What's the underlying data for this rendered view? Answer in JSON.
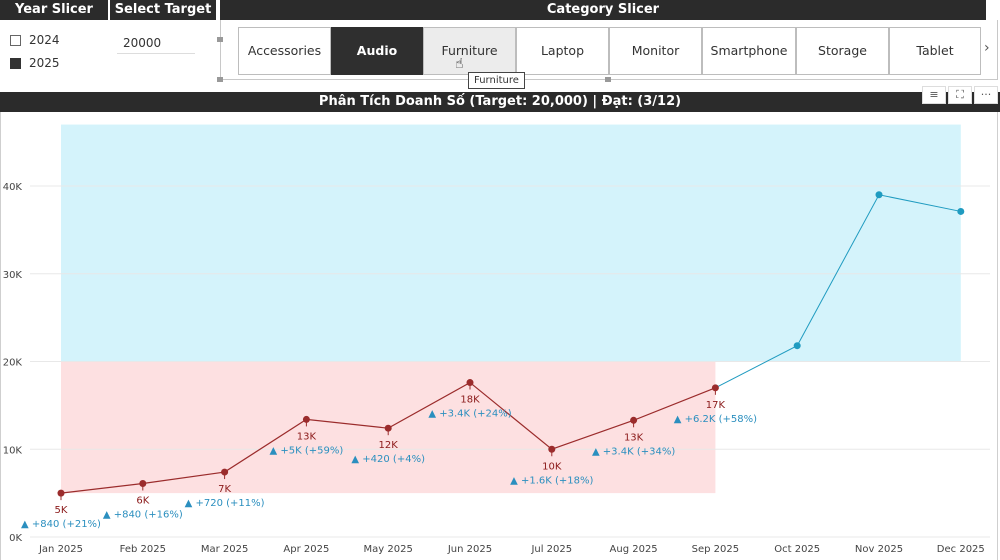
{
  "year_slicer": {
    "title": "Year Slicer",
    "items": [
      {
        "label": "2024",
        "checked": false
      },
      {
        "label": "2025",
        "checked": true
      }
    ]
  },
  "target_slicer": {
    "title": "Select Target",
    "value": "20000"
  },
  "category_slicer": {
    "title": "Category Slicer",
    "items": [
      "Accessories",
      "Audio",
      "Furniture",
      "Laptop",
      "Monitor",
      "Smartphone",
      "Storage",
      "Tablet"
    ],
    "selected": "Audio",
    "hovered": "Furniture",
    "tooltip": "Furniture",
    "next_icon": "chevron-right-icon"
  },
  "visual_header_icons": [
    "filter-icon",
    "focus-mode-icon",
    "more-options-icon"
  ],
  "chart_data": {
    "type": "line",
    "title": "Phân Tích Doanh Số (Target: 20,000) | Đạt: (3/12)",
    "target": 20000,
    "ylim": [
      0,
      47000
    ],
    "yticks": [
      {
        "value": 0,
        "label": "0K"
      },
      {
        "value": 10000,
        "label": "10K"
      },
      {
        "value": 20000,
        "label": "20K"
      },
      {
        "value": 30000,
        "label": "30K"
      },
      {
        "value": 40000,
        "label": "40K"
      }
    ],
    "categories": [
      "Jan 2025",
      "Feb 2025",
      "Mar 2025",
      "Apr 2025",
      "May 2025",
      "Jun 2025",
      "Jul 2025",
      "Aug 2025",
      "Sep 2025",
      "Oct 2025",
      "Nov 2025",
      "Dec 2025"
    ],
    "actual": [
      {
        "value": 5000,
        "label": "5K",
        "delta": "▲ +840 (+21%)"
      },
      {
        "value": 6100,
        "label": "6K",
        "delta": "▲ +840 (+16%)"
      },
      {
        "value": 7400,
        "label": "7K",
        "delta": "▲ +720 (+11%)"
      },
      {
        "value": 13400,
        "label": "13K",
        "delta": "▲ +5K (+59%)"
      },
      {
        "value": 12400,
        "label": "12K",
        "delta": "▲ +420 (+4%)"
      },
      {
        "value": 17600,
        "label": "18K",
        "delta": "▲ +3.4K (+24%)"
      },
      {
        "value": 10000,
        "label": "10K",
        "delta": "▲ +1.6K (+18%)"
      },
      {
        "value": 13300,
        "label": "13K",
        "delta": "▲ +3.4K (+34%)"
      },
      {
        "value": 17000,
        "label": "17K",
        "delta": "▲ +6.2K (+58%)"
      }
    ],
    "forecast": [
      {
        "month": "Sep 2025",
        "value": 17000
      },
      {
        "month": "Oct 2025",
        "value": 21800
      },
      {
        "month": "Nov 2025",
        "value": 39000
      },
      {
        "month": "Dec 2025",
        "value": 37100
      }
    ],
    "bands": {
      "above_target": {
        "color": "#d4f3fb",
        "from_month": "Jan 2025",
        "to_month": "Dec 2025",
        "y_from": 20000,
        "y_to": 47000
      },
      "below_target": {
        "color": "#fde0e1",
        "from_month": "Jan 2025",
        "to_month": "Sep 2025",
        "y_from": 5000,
        "y_to": 20000
      }
    },
    "colors": {
      "actual": "#9b2c2c",
      "forecast": "#1f9bc0",
      "grid": "#e8e8e8",
      "delta": "#2b8fbf"
    },
    "grid": true,
    "legend": "none"
  }
}
